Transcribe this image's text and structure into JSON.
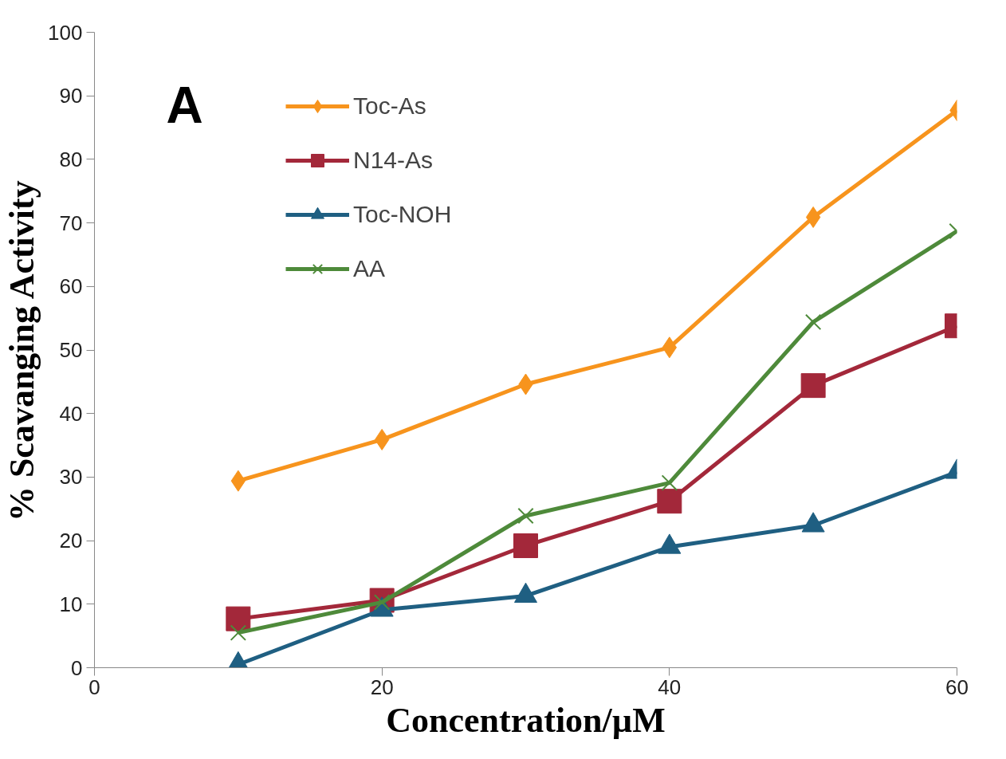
{
  "chart_data": {
    "type": "line",
    "title": "A",
    "xlabel": "Concentration/µM",
    "ylabel": "% Scavanging Activity",
    "x": [
      10,
      20,
      30,
      40,
      50,
      60
    ],
    "series": [
      {
        "name": "Toc-As",
        "color": "#f7941d",
        "marker": "diamond",
        "values": [
          29.4,
          35.9,
          44.6,
          50.4,
          70.9,
          87.7
        ]
      },
      {
        "name": "N14-As",
        "color": "#a3283a",
        "marker": "square",
        "values": [
          7.7,
          10.6,
          19.2,
          26.2,
          44.4,
          53.8
        ]
      },
      {
        "name": "Toc-NOH",
        "color": "#1f5f82",
        "marker": "triangle",
        "values": [
          0.5,
          9.1,
          11.3,
          19.0,
          22.4,
          30.8
        ]
      },
      {
        "name": "AA",
        "color": "#4e8a3a",
        "marker": "cross",
        "values": [
          5.5,
          10.3,
          23.9,
          29.1,
          54.4,
          68.7
        ]
      }
    ],
    "xlim": [
      0,
      60
    ],
    "xticks": [
      0,
      20,
      40,
      60
    ],
    "ylim": [
      0,
      100
    ],
    "yticks": [
      0,
      10,
      20,
      30,
      40,
      50,
      60,
      70,
      80,
      90,
      100
    ],
    "grid": false,
    "legend": "top left",
    "line_style": "solid"
  }
}
